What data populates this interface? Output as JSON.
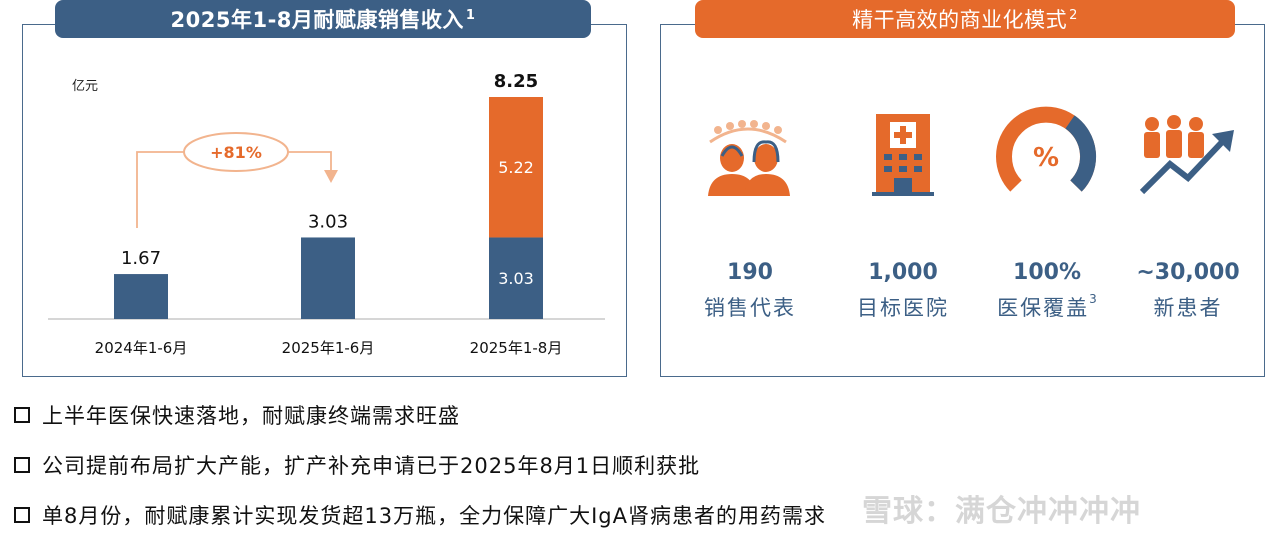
{
  "left_title": "2025年1-8月耐赋康销售收入",
  "left_title_sup": "1",
  "right_title": "精干高效的商业化模式",
  "right_title_sup": "2",
  "chart_data": {
    "type": "bar",
    "unit_label": "亿元",
    "categories": [
      "2024年1-6月",
      "2025年1-6月",
      "2025年1-8月"
    ],
    "series": [
      {
        "values": [
          1.67,
          3.03,
          3.03
        ],
        "color": "#3c5f85"
      },
      {
        "values": [
          0,
          0,
          5.22
        ],
        "color": "#e56a2b"
      }
    ],
    "totals": [
      1.67,
      3.03,
      8.25
    ],
    "segment_labels": [
      "3.03",
      "5.22"
    ],
    "ylim": [
      0,
      8.25
    ],
    "annotation": "+81%"
  },
  "metrics": [
    {
      "icon": "sales-team-icon",
      "value": "190",
      "label": "销售代表",
      "sup": ""
    },
    {
      "icon": "hospital-icon",
      "value": "1,000",
      "label": "目标医院",
      "sup": ""
    },
    {
      "icon": "coverage-gauge-icon",
      "value": "100%",
      "label": "医保覆盖",
      "sup": "3"
    },
    {
      "icon": "patients-growth-icon",
      "value": "~30,000",
      "label": "新患者",
      "sup": ""
    }
  ],
  "bullets": [
    "上半年医保快速落地，耐赋康终端需求旺盛",
    "公司提前布局扩大产能，扩产补充申请已于2025年8月1日顺利获批",
    "单8月份，耐赋康累计实现发货超13万瓶，全力保障广大IgA肾病患者的用药需求"
  ],
  "watermark": "雪球：满仓冲冲冲冲",
  "colors": {
    "navy": "#3c5f85",
    "orange": "#e56a2b",
    "light_orange": "#f2b48e"
  }
}
